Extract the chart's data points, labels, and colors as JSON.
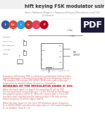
{
  "bg_color": "#ffffff",
  "title_text": "hift keying FSK modulator using",
  "title_color": "#333333",
  "title_fontsize": 4.8,
  "breadcrumb_line1": "Home > Radiotronics Magazine > frequency shift keying FSK modulator using IC 555",
  "breadcrumb_line2": "2 Comments",
  "breadcrumb_color": "#888888",
  "breadcrumb_fontsize": 1.8,
  "link_color": "#3366cc",
  "social_colors": [
    "#3b5998",
    "#dd4b39",
    "#1da1f2",
    "#c0392b",
    "#e4405f",
    "#bd081c"
  ],
  "social_letters": [
    "f",
    "G+",
    "t",
    "in",
    "♫",
    "P"
  ],
  "pdf_bg": "#1c1c3a",
  "pdf_text": "PDF",
  "pdf_fontsize": 9,
  "circuit_color": "#f5f5f5",
  "circuit_line_color": "#444444",
  "body_text_color": "#555555",
  "body_fontsize": 2.0,
  "section_title": "WORKING OF THE MODULATOR USING IC 555:",
  "section_color": "#cc0000",
  "section_fontsize": 2.8,
  "watermark": "www.budgetsense.blogspot.com",
  "watermark_color": "#aaaaaa",
  "ads_color": "#aaaaaa",
  "vcc_label": "+ Vcc",
  "comp_labels": [
    "SOURCE :",
    "Vcc=5-15 v",
    "Ra=1k,Rb=5k",
    "C=0.01uf",
    "Timing"
  ],
  "body_paragraph1": [
    "Frequency shift keying (FSK) is a frequency modulation scheme where",
    "digital information is transmitted through discrete frequency changes.",
    "The simplest FSK is binary FSK (BFSK). BFSK uses a pair of discrete",
    "frequencies to transmit binary (0s and 1s) information."
  ],
  "body_paragraph2": [
    "When the input signal is a logic 0, the transistor Q1 will be OFF.",
    "The timing resistor connected to pin 7 of the 555 will be Ra+Rb and",
    "the output frequency will be f1. When the input is logic 1, Q1 is ON",
    "and Rb is short circuited and the timing resistor is Ra only and the",
    "output frequency f2 will be higher than f1.",
    "",
    "When the logic input is 0, the timer 555 produces output frequency",
    "f1=1.44/(Ra+2Rb)C and when the logic input is 1 the output frequency",
    "f2 =1.44/(Ra)C. Here f2 > f1."
  ]
}
